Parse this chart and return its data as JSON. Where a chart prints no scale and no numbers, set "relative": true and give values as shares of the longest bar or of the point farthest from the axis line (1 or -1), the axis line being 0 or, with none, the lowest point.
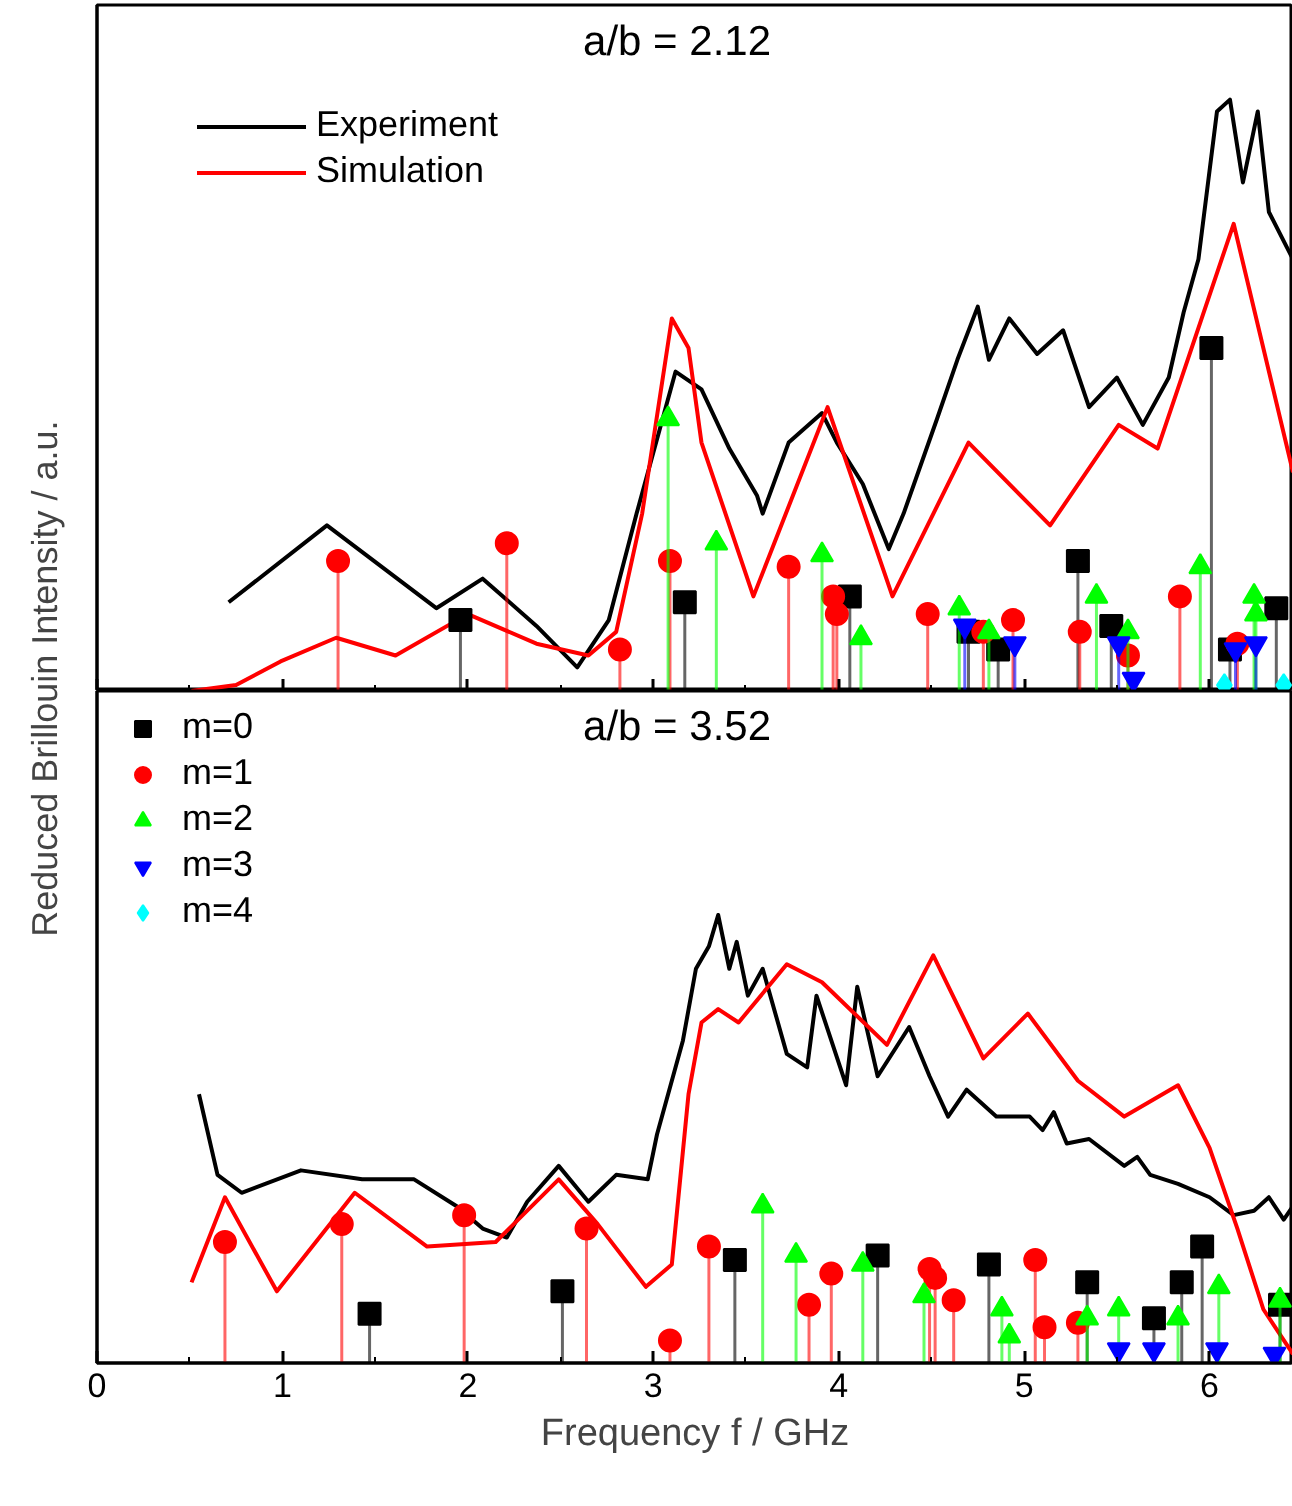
{
  "chart_data": [
    {
      "type": "line",
      "title": "a/b = 2.12",
      "ylabel": "Reduced Brillouin Intensity / a.u.",
      "relative": true,
      "xlim": [
        0,
        6.45
      ],
      "xticks": [
        0,
        {
          "value": 0.5,
          "label": null
        },
        1,
        {
          "value": 1.5,
          "label": null
        },
        2,
        {
          "value": 2.5,
          "label": null
        },
        3,
        {
          "value": 3.5,
          "label": null
        },
        4,
        {
          "value": 4.5,
          "label": null
        },
        5,
        {
          "value": 5.5,
          "label": null
        },
        6
      ],
      "tick_labels": false,
      "legend": "top left",
      "grid": false,
      "series": [
        {
          "name": "Experiment",
          "color": "#000000",
          "x": [
            0.71,
            1.24,
            1.83,
            2.08,
            2.37,
            2.59,
            2.76,
            2.91,
            3.05,
            3.12,
            3.26,
            3.41,
            3.56,
            3.59,
            3.73,
            3.91,
            3.99,
            4.13,
            4.27,
            4.35,
            4.53,
            4.64,
            4.75,
            4.81,
            4.92,
            5.07,
            5.21,
            5.35,
            5.5,
            5.64,
            5.78,
            5.86,
            5.94,
            6.04,
            6.11,
            6.18,
            6.26,
            6.32,
            6.45
          ],
          "values": [
            0.15,
            0.28,
            0.14,
            0.19,
            0.11,
            0.04,
            0.12,
            0.3,
            0.46,
            0.54,
            0.51,
            0.41,
            0.33,
            0.3,
            0.42,
            0.47,
            0.42,
            0.35,
            0.24,
            0.3,
            0.46,
            0.56,
            0.65,
            0.56,
            0.63,
            0.57,
            0.61,
            0.48,
            0.53,
            0.45,
            0.53,
            0.64,
            0.73,
            0.98,
            1.0,
            0.86,
            0.98,
            0.81,
            0.73
          ]
        },
        {
          "name": "Simulation",
          "color": "#ff0000",
          "x": [
            0.51,
            0.75,
            0.99,
            1.29,
            1.61,
            2.0,
            2.37,
            2.65,
            2.8,
            2.94,
            3.1,
            3.19,
            3.26,
            3.54,
            3.94,
            4.29,
            4.7,
            5.14,
            5.51,
            5.72,
            6.13,
            6.45
          ],
          "values": [
            0.0,
            0.01,
            0.05,
            0.09,
            0.06,
            0.13,
            0.08,
            0.06,
            0.1,
            0.3,
            0.63,
            0.58,
            0.42,
            0.16,
            0.48,
            0.16,
            0.42,
            0.28,
            0.45,
            0.41,
            0.79,
            0.37
          ]
        },
        {
          "type": "lollipop",
          "marker": "square",
          "color": "#000000",
          "x": [
            1.96,
            3.17,
            4.06,
            4.7,
            4.86,
            5.29,
            5.47,
            6.01,
            6.11,
            6.36
          ],
          "values": [
            0.12,
            0.15,
            0.16,
            0.1,
            0.07,
            0.22,
            0.11,
            0.58,
            0.07,
            0.14
          ]
        },
        {
          "type": "lollipop",
          "marker": "circle",
          "color": "#ff0000",
          "x": [
            1.3,
            2.21,
            2.82,
            3.09,
            3.73,
            3.97,
            3.99,
            4.48,
            4.78,
            4.94,
            5.3,
            5.56,
            5.84,
            6.15
          ],
          "values": [
            0.22,
            0.25,
            0.07,
            0.22,
            0.21,
            0.16,
            0.13,
            0.13,
            0.1,
            0.12,
            0.1,
            0.06,
            0.16,
            0.08
          ]
        },
        {
          "type": "lollipop",
          "marker": "triangle",
          "color": "#00ff00",
          "x": [
            3.08,
            3.34,
            3.91,
            4.12,
            4.65,
            4.81,
            5.39,
            5.56,
            5.95,
            6.24,
            6.25
          ],
          "values": [
            0.46,
            0.25,
            0.23,
            0.09,
            0.14,
            0.1,
            0.16,
            0.1,
            0.21,
            0.16,
            0.13
          ]
        },
        {
          "type": "lollipop",
          "marker": "triangle_down",
          "color": "#0000ff",
          "x": [
            4.68,
            4.95,
            5.51,
            5.59,
            6.14,
            6.25
          ],
          "values": [
            0.11,
            0.08,
            0.08,
            0.02,
            0.07,
            0.08
          ]
        },
        {
          "type": "lollipop",
          "marker": "diamond",
          "color": "#00ffff",
          "x": [
            6.08,
            6.4
          ],
          "values": [
            0.01,
            0.01
          ]
        }
      ]
    },
    {
      "type": "line",
      "title": "a/b = 3.52",
      "xlabel": "Frequency f / GHz",
      "relative": true,
      "xlim": [
        0,
        6.45
      ],
      "xticks": [
        0,
        {
          "value": 0.5,
          "label": null
        },
        1,
        {
          "value": 1.5,
          "label": null
        },
        2,
        {
          "value": 2.5,
          "label": null
        },
        3,
        {
          "value": 3.5,
          "label": null
        },
        4,
        {
          "value": 4.5,
          "label": null
        },
        5,
        {
          "value": 5.5,
          "label": null
        },
        6
      ],
      "tick_labels": "x",
      "legend": "top left",
      "grid": false,
      "series": [
        {
          "color": "#000000",
          "x": [
            0.55,
            0.65,
            0.78,
            1.1,
            1.43,
            1.71,
            1.94,
            2.08,
            2.21,
            2.32,
            2.49,
            2.65,
            2.8,
            2.97,
            3.02,
            3.16,
            3.23,
            3.3,
            3.35,
            3.41,
            3.45,
            3.51,
            3.59,
            3.72,
            3.83,
            3.88,
            4.04,
            4.1,
            4.21,
            4.38,
            4.49,
            4.59,
            4.69,
            4.85,
            5.03,
            5.1,
            5.16,
            5.23,
            5.35,
            5.54,
            5.61,
            5.68,
            5.83,
            6.0,
            6.13,
            6.24,
            6.32,
            6.4,
            6.45
          ],
          "values": [
            0.6,
            0.42,
            0.38,
            0.43,
            0.41,
            0.41,
            0.35,
            0.3,
            0.28,
            0.36,
            0.44,
            0.36,
            0.42,
            0.41,
            0.51,
            0.72,
            0.88,
            0.93,
            1.0,
            0.88,
            0.94,
            0.82,
            0.88,
            0.69,
            0.66,
            0.82,
            0.62,
            0.84,
            0.64,
            0.75,
            0.64,
            0.55,
            0.61,
            0.55,
            0.55,
            0.52,
            0.56,
            0.49,
            0.5,
            0.44,
            0.46,
            0.42,
            0.4,
            0.37,
            0.33,
            0.34,
            0.37,
            0.32,
            0.35
          ]
        },
        {
          "color": "#ff0000",
          "x": [
            0.51,
            0.69,
            0.97,
            1.39,
            1.78,
            2.15,
            2.49,
            2.7,
            2.96,
            3.1,
            3.19,
            3.26,
            3.35,
            3.46,
            3.72,
            3.91,
            4.26,
            4.51,
            4.78,
            5.02,
            5.29,
            5.54,
            5.83,
            6.0,
            6.15,
            6.29,
            6.45
          ],
          "values": [
            0.18,
            0.37,
            0.16,
            0.38,
            0.26,
            0.27,
            0.41,
            0.31,
            0.17,
            0.22,
            0.6,
            0.76,
            0.79,
            0.76,
            0.89,
            0.85,
            0.71,
            0.91,
            0.68,
            0.78,
            0.63,
            0.55,
            0.62,
            0.48,
            0.3,
            0.12,
            0.02
          ]
        },
        {
          "type": "lollipop",
          "name": "m=0",
          "marker": "square",
          "color": "#000000",
          "x": [
            1.47,
            2.51,
            3.44,
            4.21,
            4.81,
            5.34,
            5.7,
            5.85,
            5.96,
            6.38
          ],
          "values": [
            0.11,
            0.16,
            0.23,
            0.24,
            0.22,
            0.18,
            0.1,
            0.18,
            0.26,
            0.13
          ]
        },
        {
          "type": "lollipop",
          "name": "m=1",
          "marker": "circle",
          "color": "#ff0000",
          "x": [
            0.69,
            1.32,
            1.98,
            2.64,
            3.09,
            3.3,
            3.84,
            3.96,
            4.49,
            4.52,
            4.62,
            5.06,
            5.11,
            5.29
          ],
          "values": [
            0.27,
            0.31,
            0.33,
            0.3,
            0.05,
            0.26,
            0.13,
            0.2,
            0.21,
            0.19,
            0.14,
            0.23,
            0.08,
            0.09
          ]
        },
        {
          "type": "lollipop",
          "name": "m=2",
          "marker": "triangle",
          "color": "#00ff00",
          "x": [
            3.59,
            3.77,
            4.13,
            4.46,
            4.88,
            4.92,
            5.34,
            5.51,
            5.83,
            6.05,
            6.38
          ],
          "values": [
            0.35,
            0.24,
            0.22,
            0.15,
            0.12,
            0.06,
            0.1,
            0.12,
            0.1,
            0.17,
            0.14
          ]
        },
        {
          "type": "lollipop",
          "name": "m=3",
          "marker": "triangle_down",
          "color": "#0000ff",
          "x": [
            5.51,
            5.7,
            6.04,
            6.35
          ],
          "values": [
            0.03,
            0.03,
            0.03,
            0.02
          ]
        },
        {
          "type": "lollipop",
          "name": "m=4",
          "marker": "diamond",
          "color": "#00ffff"
        }
      ]
    }
  ]
}
